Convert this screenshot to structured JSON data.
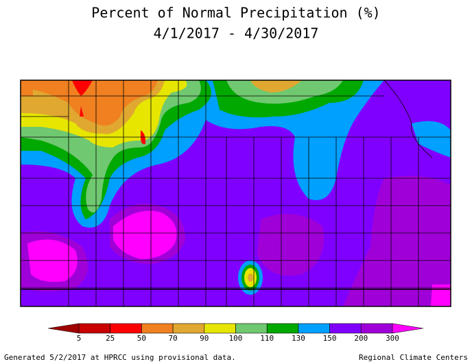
{
  "title": "Percent of Normal Precipitation (%)",
  "subtitle": "4/1/2017 - 4/30/2017",
  "legend": {
    "labels": [
      5,
      25,
      50,
      70,
      90,
      100,
      110,
      130,
      150,
      200,
      300
    ],
    "colors": [
      "#a00000",
      "#c80000",
      "#ff0000",
      "#f08020",
      "#e0a830",
      "#e6e600",
      "#70c870",
      "#00a800",
      "#00a0ff",
      "#8000ff",
      "#a000d8",
      "#ff00ff"
    ]
  },
  "footer": {
    "left": "Generated 5/2/2017 at HPRCC using provisional data.",
    "right": "Regional Climate Centers"
  }
}
